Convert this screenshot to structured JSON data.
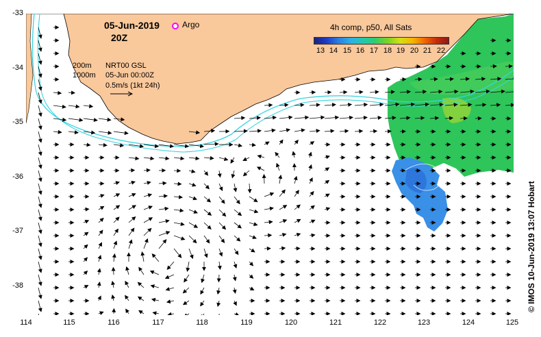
{
  "header": {
    "date": "05-Jun-2019",
    "time": "20Z",
    "argo_label": "Argo",
    "composite_title": "4h comp, p50, All Sats"
  },
  "legend": {
    "isobath_200": "200m",
    "isobath_1000": "1000m",
    "product": "NRT00 GSL",
    "product_date": "05-Jun 00:00Z",
    "scale_label": "0.5m/s (1kt 24h)"
  },
  "colorbar": {
    "ticks": [
      "13",
      "14",
      "15",
      "16",
      "17",
      "18",
      "19",
      "20",
      "21",
      "22"
    ],
    "min_c": 12.5,
    "max_c": 22.5
  },
  "axes": {
    "lat_ticks": [
      "-33",
      "-34",
      "-35",
      "-36",
      "-37",
      "-38"
    ],
    "lon_ticks": [
      "114",
      "115",
      "116",
      "117",
      "118",
      "119",
      "120",
      "121",
      "122",
      "123",
      "124",
      "125"
    ],
    "lon_range": [
      114,
      125
    ],
    "lat_range": [
      -33,
      -38.5
    ]
  },
  "credit": "© IMOS 10-Jun-2019 13:07 Hobart",
  "colors": {
    "land": "#f9c89b",
    "isobath": "#39d4e0",
    "arrow": "#000000",
    "argo": "#ff00ff",
    "sst_green": "#2ec55a",
    "sst_blue": "#3a8fe6"
  }
}
